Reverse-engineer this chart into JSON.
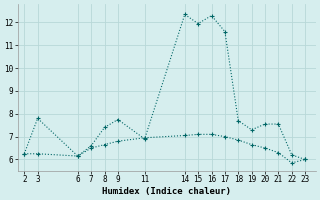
{
  "xlabel": "Humidex (Indice chaleur)",
  "bg_color": "#d6eeee",
  "grid_color": "#b8d8d8",
  "line_color": "#006666",
  "series1_x": [
    2,
    3,
    6,
    7,
    8,
    9,
    11,
    14,
    15,
    16,
    17,
    18,
    19,
    20,
    21,
    22,
    23
  ],
  "series1_y": [
    6.25,
    7.8,
    6.15,
    6.6,
    7.4,
    7.75,
    6.9,
    12.35,
    11.95,
    12.3,
    11.6,
    7.7,
    7.3,
    7.55,
    7.55,
    6.2,
    6.0
  ],
  "series2_x": [
    2,
    3,
    6,
    7,
    8,
    9,
    11,
    14,
    15,
    16,
    17,
    18,
    19,
    20,
    21,
    22,
    23
  ],
  "series2_y": [
    6.25,
    6.25,
    6.15,
    6.5,
    6.65,
    6.8,
    6.95,
    7.05,
    7.1,
    7.1,
    7.0,
    6.85,
    6.65,
    6.5,
    6.3,
    5.85,
    6.0
  ],
  "xticks": [
    2,
    3,
    6,
    7,
    8,
    9,
    11,
    14,
    15,
    16,
    17,
    18,
    19,
    20,
    21,
    22,
    23
  ],
  "yticks": [
    6,
    7,
    8,
    9,
    10,
    11,
    12
  ],
  "ylim": [
    5.5,
    12.8
  ],
  "xlim": [
    1.5,
    23.8
  ],
  "tick_fontsize": 5.5,
  "axis_fontsize": 6.5
}
